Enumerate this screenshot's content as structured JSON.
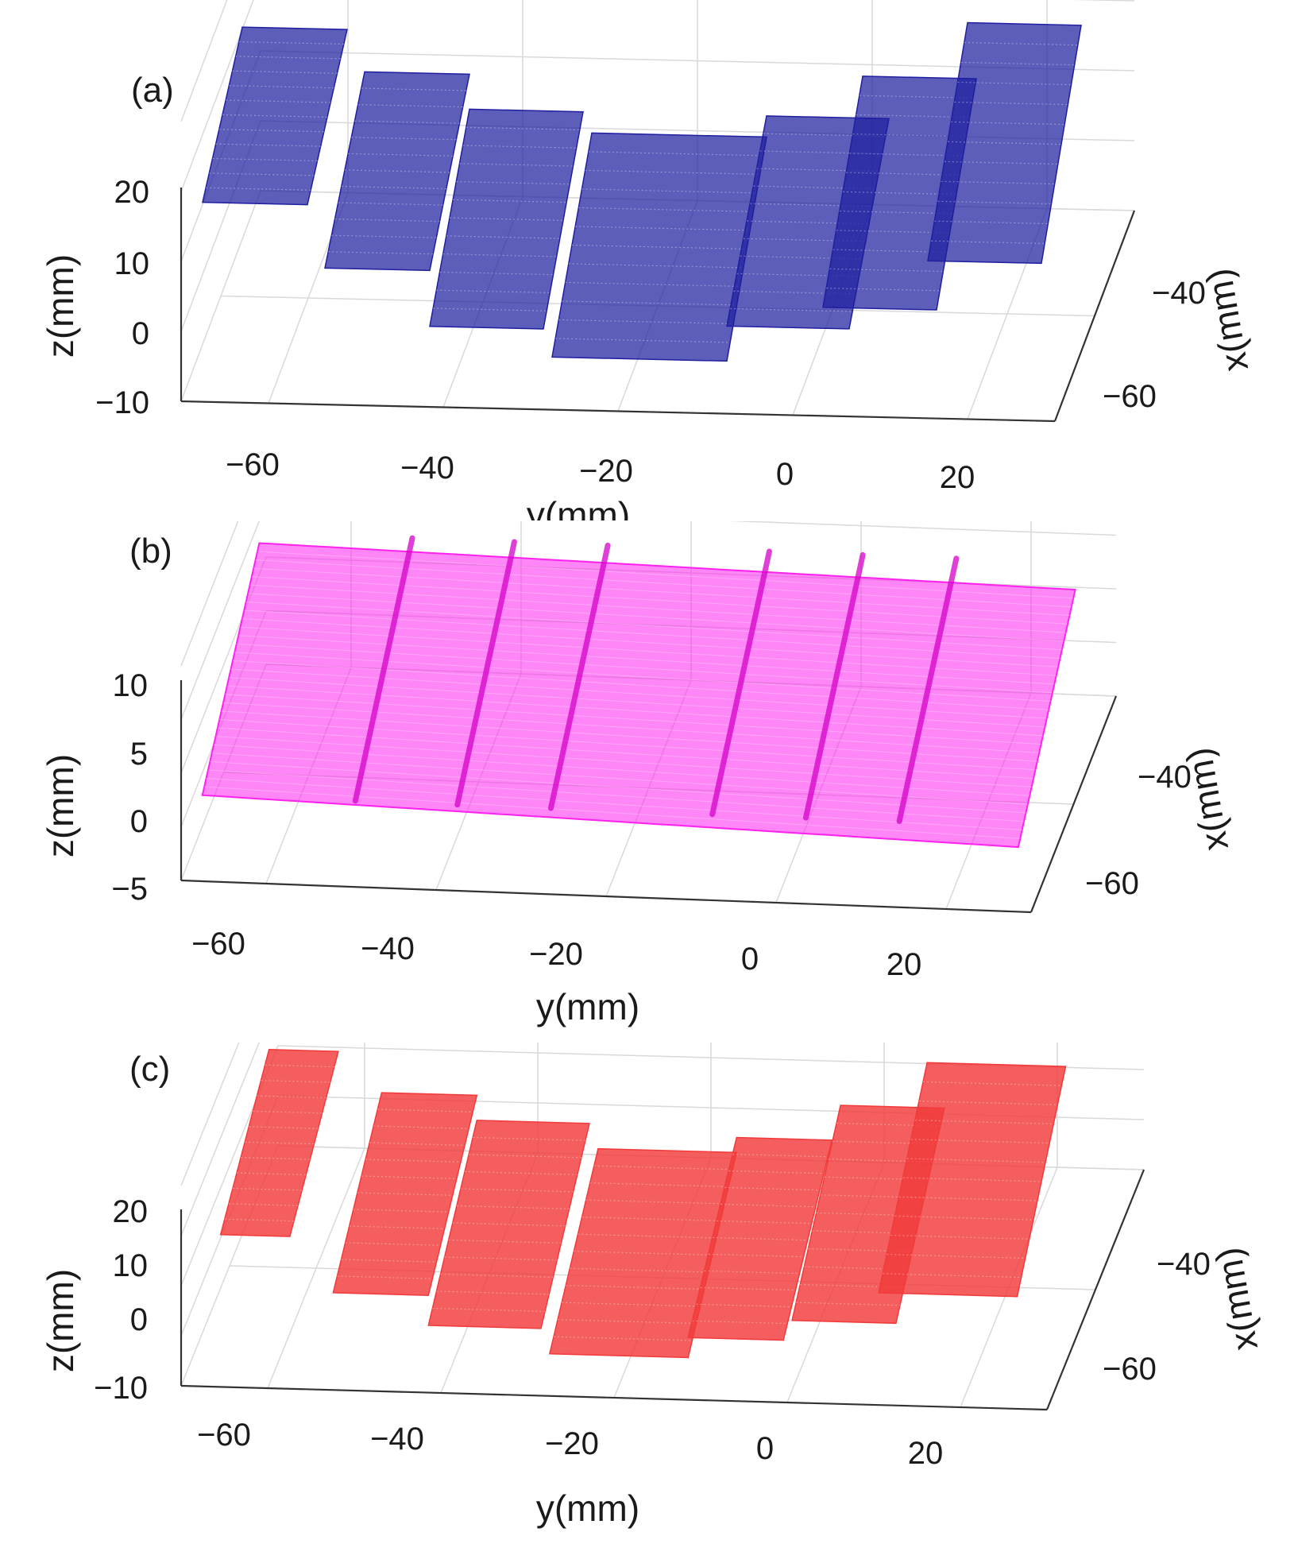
{
  "chart_data": [
    {
      "panel_label": "(a)",
      "type": "scatter3d",
      "point_color": "#1f1fa0",
      "xlabel": "y(mm)",
      "ylabel": "z(mm)",
      "depth_label": "x(mm)",
      "y_axis_ticks": [
        "-60",
        "-40",
        "-20",
        "0",
        "20"
      ],
      "z_axis_ticks": [
        "20",
        "10",
        "0",
        "-10"
      ],
      "x_axis_ticks": [
        "-40",
        "-60"
      ],
      "y_range": [
        -70,
        30
      ],
      "z_range": [
        -10,
        30
      ],
      "grid": true,
      "patches": [
        {
          "y_range": [
            -68,
            -56
          ],
          "z_top": 27,
          "z_bottom": 17
        },
        {
          "y_range": [
            -54,
            -42
          ],
          "z_top": 21,
          "z_bottom": 8
        },
        {
          "y_range": [
            -42,
            -29
          ],
          "z_top": 16,
          "z_bottom": 0
        },
        {
          "y_range": [
            -28,
            -8
          ],
          "z_top": 13,
          "z_bottom": -4
        },
        {
          "y_range": [
            -8,
            6
          ],
          "z_top": 16,
          "z_bottom": 1
        },
        {
          "y_range": [
            3,
            16
          ],
          "z_top": 22,
          "z_bottom": 4
        },
        {
          "y_range": [
            15,
            28
          ],
          "z_top": 30,
          "z_bottom": 11
        }
      ]
    },
    {
      "panel_label": "(b)",
      "type": "surface3d",
      "point_color": "#ff22ee",
      "xlabel": "y(mm)",
      "ylabel": "z(mm)",
      "depth_label": "x(mm)",
      "y_axis_ticks": [
        "-60",
        "-40",
        "-20",
        "0",
        "20"
      ],
      "z_axis_ticks": [
        "10",
        "5",
        "0",
        "-5"
      ],
      "x_axis_ticks": [
        "-40",
        "-60"
      ],
      "y_range": [
        -70,
        30
      ],
      "z_range": [
        -5,
        15
      ],
      "grid": true,
      "ridges_y": [
        -50,
        -38,
        -27,
        -8,
        3,
        14
      ]
    },
    {
      "panel_label": "(c)",
      "type": "scatter3d",
      "point_color": "#f23a3a",
      "xlabel": "y(mm)",
      "ylabel": "z(mm)",
      "depth_label": "x(mm)",
      "y_axis_ticks": [
        "-60",
        "-40",
        "-20",
        "0",
        "20"
      ],
      "z_axis_ticks": [
        "20",
        "10",
        "0",
        "-10"
      ],
      "x_axis_ticks": [
        "-40",
        "-60"
      ],
      "y_range": [
        -70,
        30
      ],
      "z_range": [
        -10,
        30
      ],
      "grid": true,
      "patches": [
        {
          "y_range": [
            -66,
            -58
          ],
          "z_top": 31,
          "z_bottom": 18
        },
        {
          "y_range": [
            -53,
            -42
          ],
          "z_top": 23,
          "z_bottom": 7
        },
        {
          "y_range": [
            -42,
            -29
          ],
          "z_top": 18,
          "z_bottom": 1
        },
        {
          "y_range": [
            -28,
            -12
          ],
          "z_top": 13,
          "z_bottom": -4
        },
        {
          "y_range": [
            -12,
            -1
          ],
          "z_top": 16,
          "z_bottom": 0
        },
        {
          "y_range": [
            0,
            12
          ],
          "z_top": 23,
          "z_bottom": 4
        },
        {
          "y_range": [
            10,
            26
          ],
          "z_top": 32,
          "z_bottom": 10
        }
      ]
    }
  ]
}
